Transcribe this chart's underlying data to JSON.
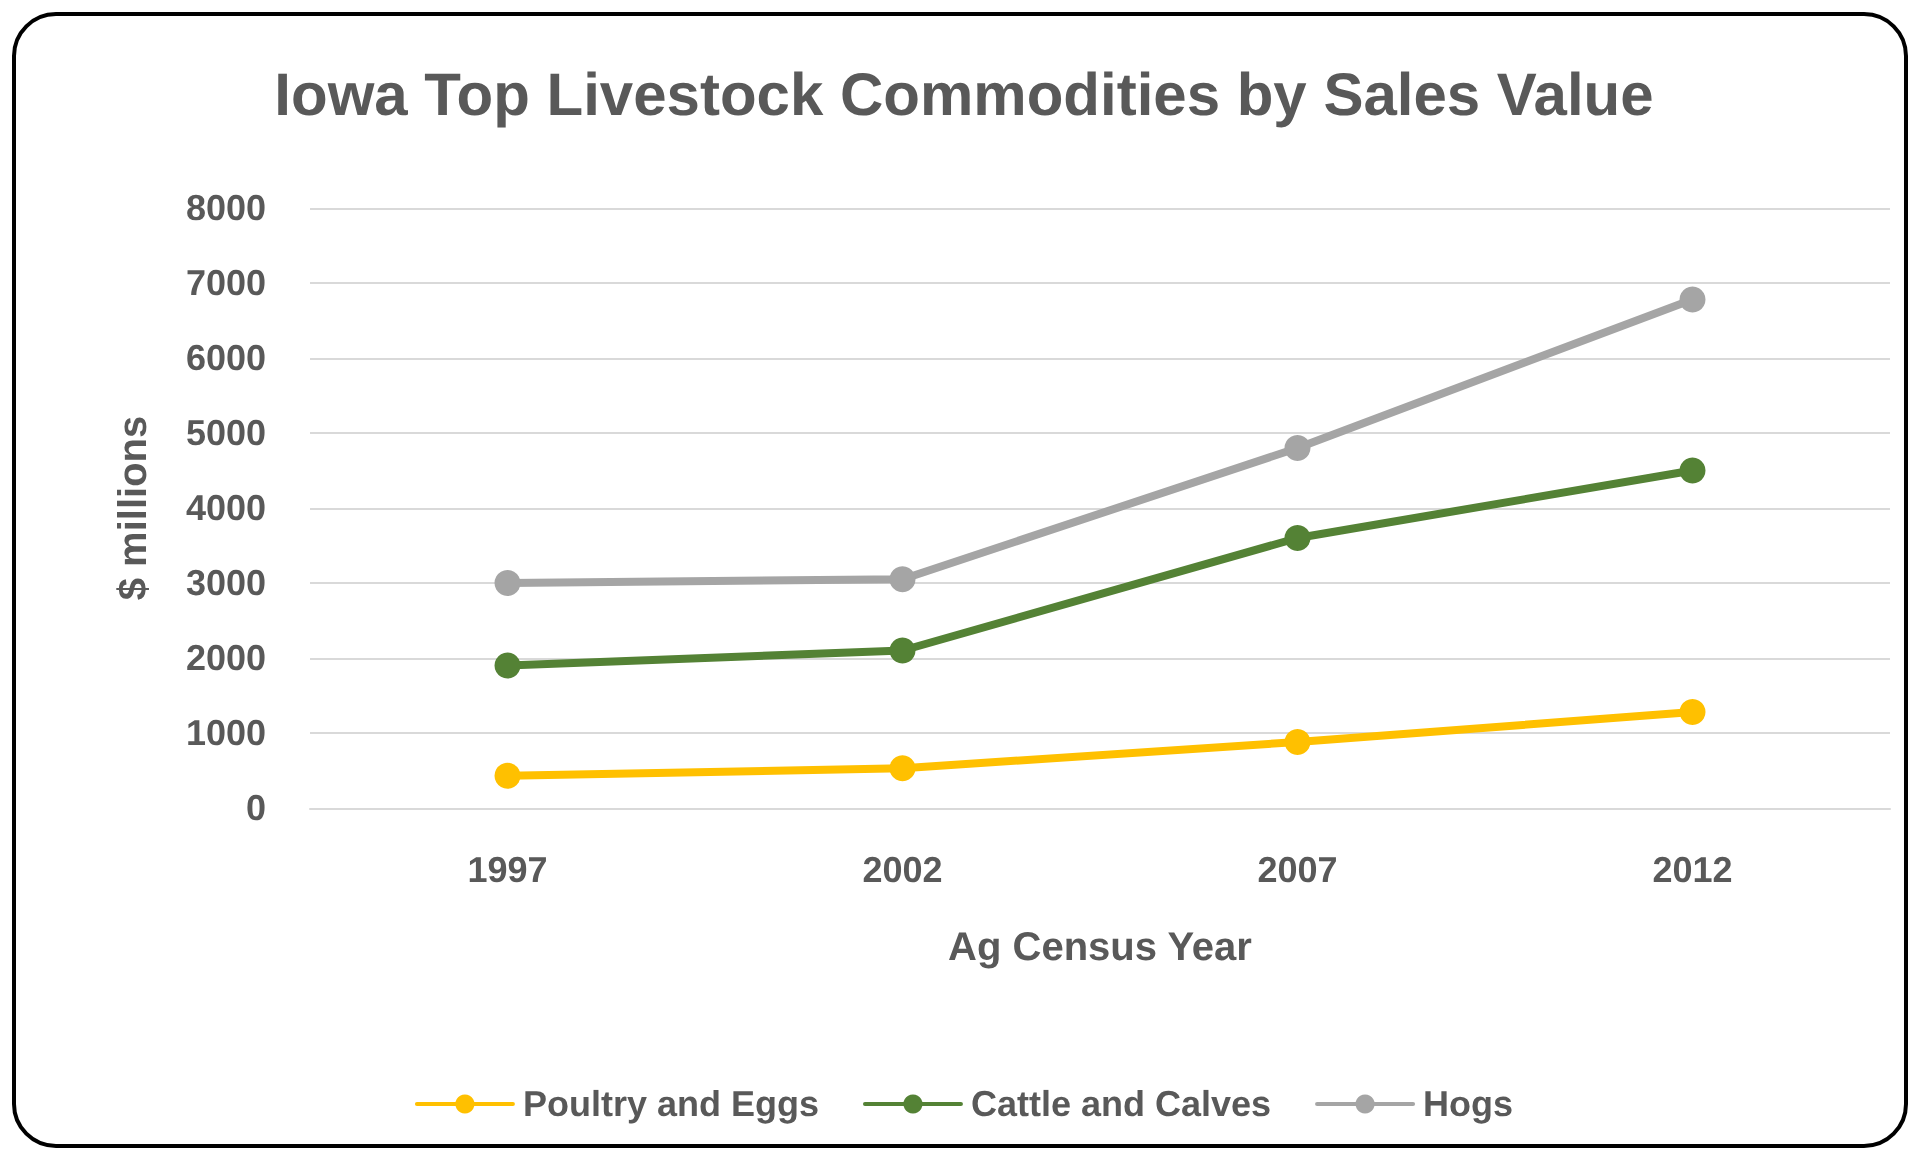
{
  "chart_data": {
    "type": "line",
    "title": "Iowa Top Livestock Commodities by Sales Value",
    "xlabel": "Ag Census Year",
    "ylabel": "$ millions",
    "categories": [
      "1997",
      "2002",
      "2007",
      "2012"
    ],
    "series": [
      {
        "name": "Poultry and Eggs",
        "color": "#ffc000",
        "values": [
          430,
          530,
          880,
          1280
        ]
      },
      {
        "name": "Cattle and Calves",
        "color": "#548235",
        "values": [
          1900,
          2100,
          3600,
          4500
        ]
      },
      {
        "name": "Hogs",
        "color": "#a5a5a5",
        "values": [
          3000,
          3050,
          4800,
          6780
        ]
      }
    ],
    "ylim": [
      0,
      8000
    ],
    "yticks": [
      0,
      1000,
      2000,
      3000,
      4000,
      5000,
      6000,
      7000,
      8000
    ],
    "grid": "y",
    "legend": "bottom",
    "marker": "circle",
    "line_style": "solid"
  }
}
